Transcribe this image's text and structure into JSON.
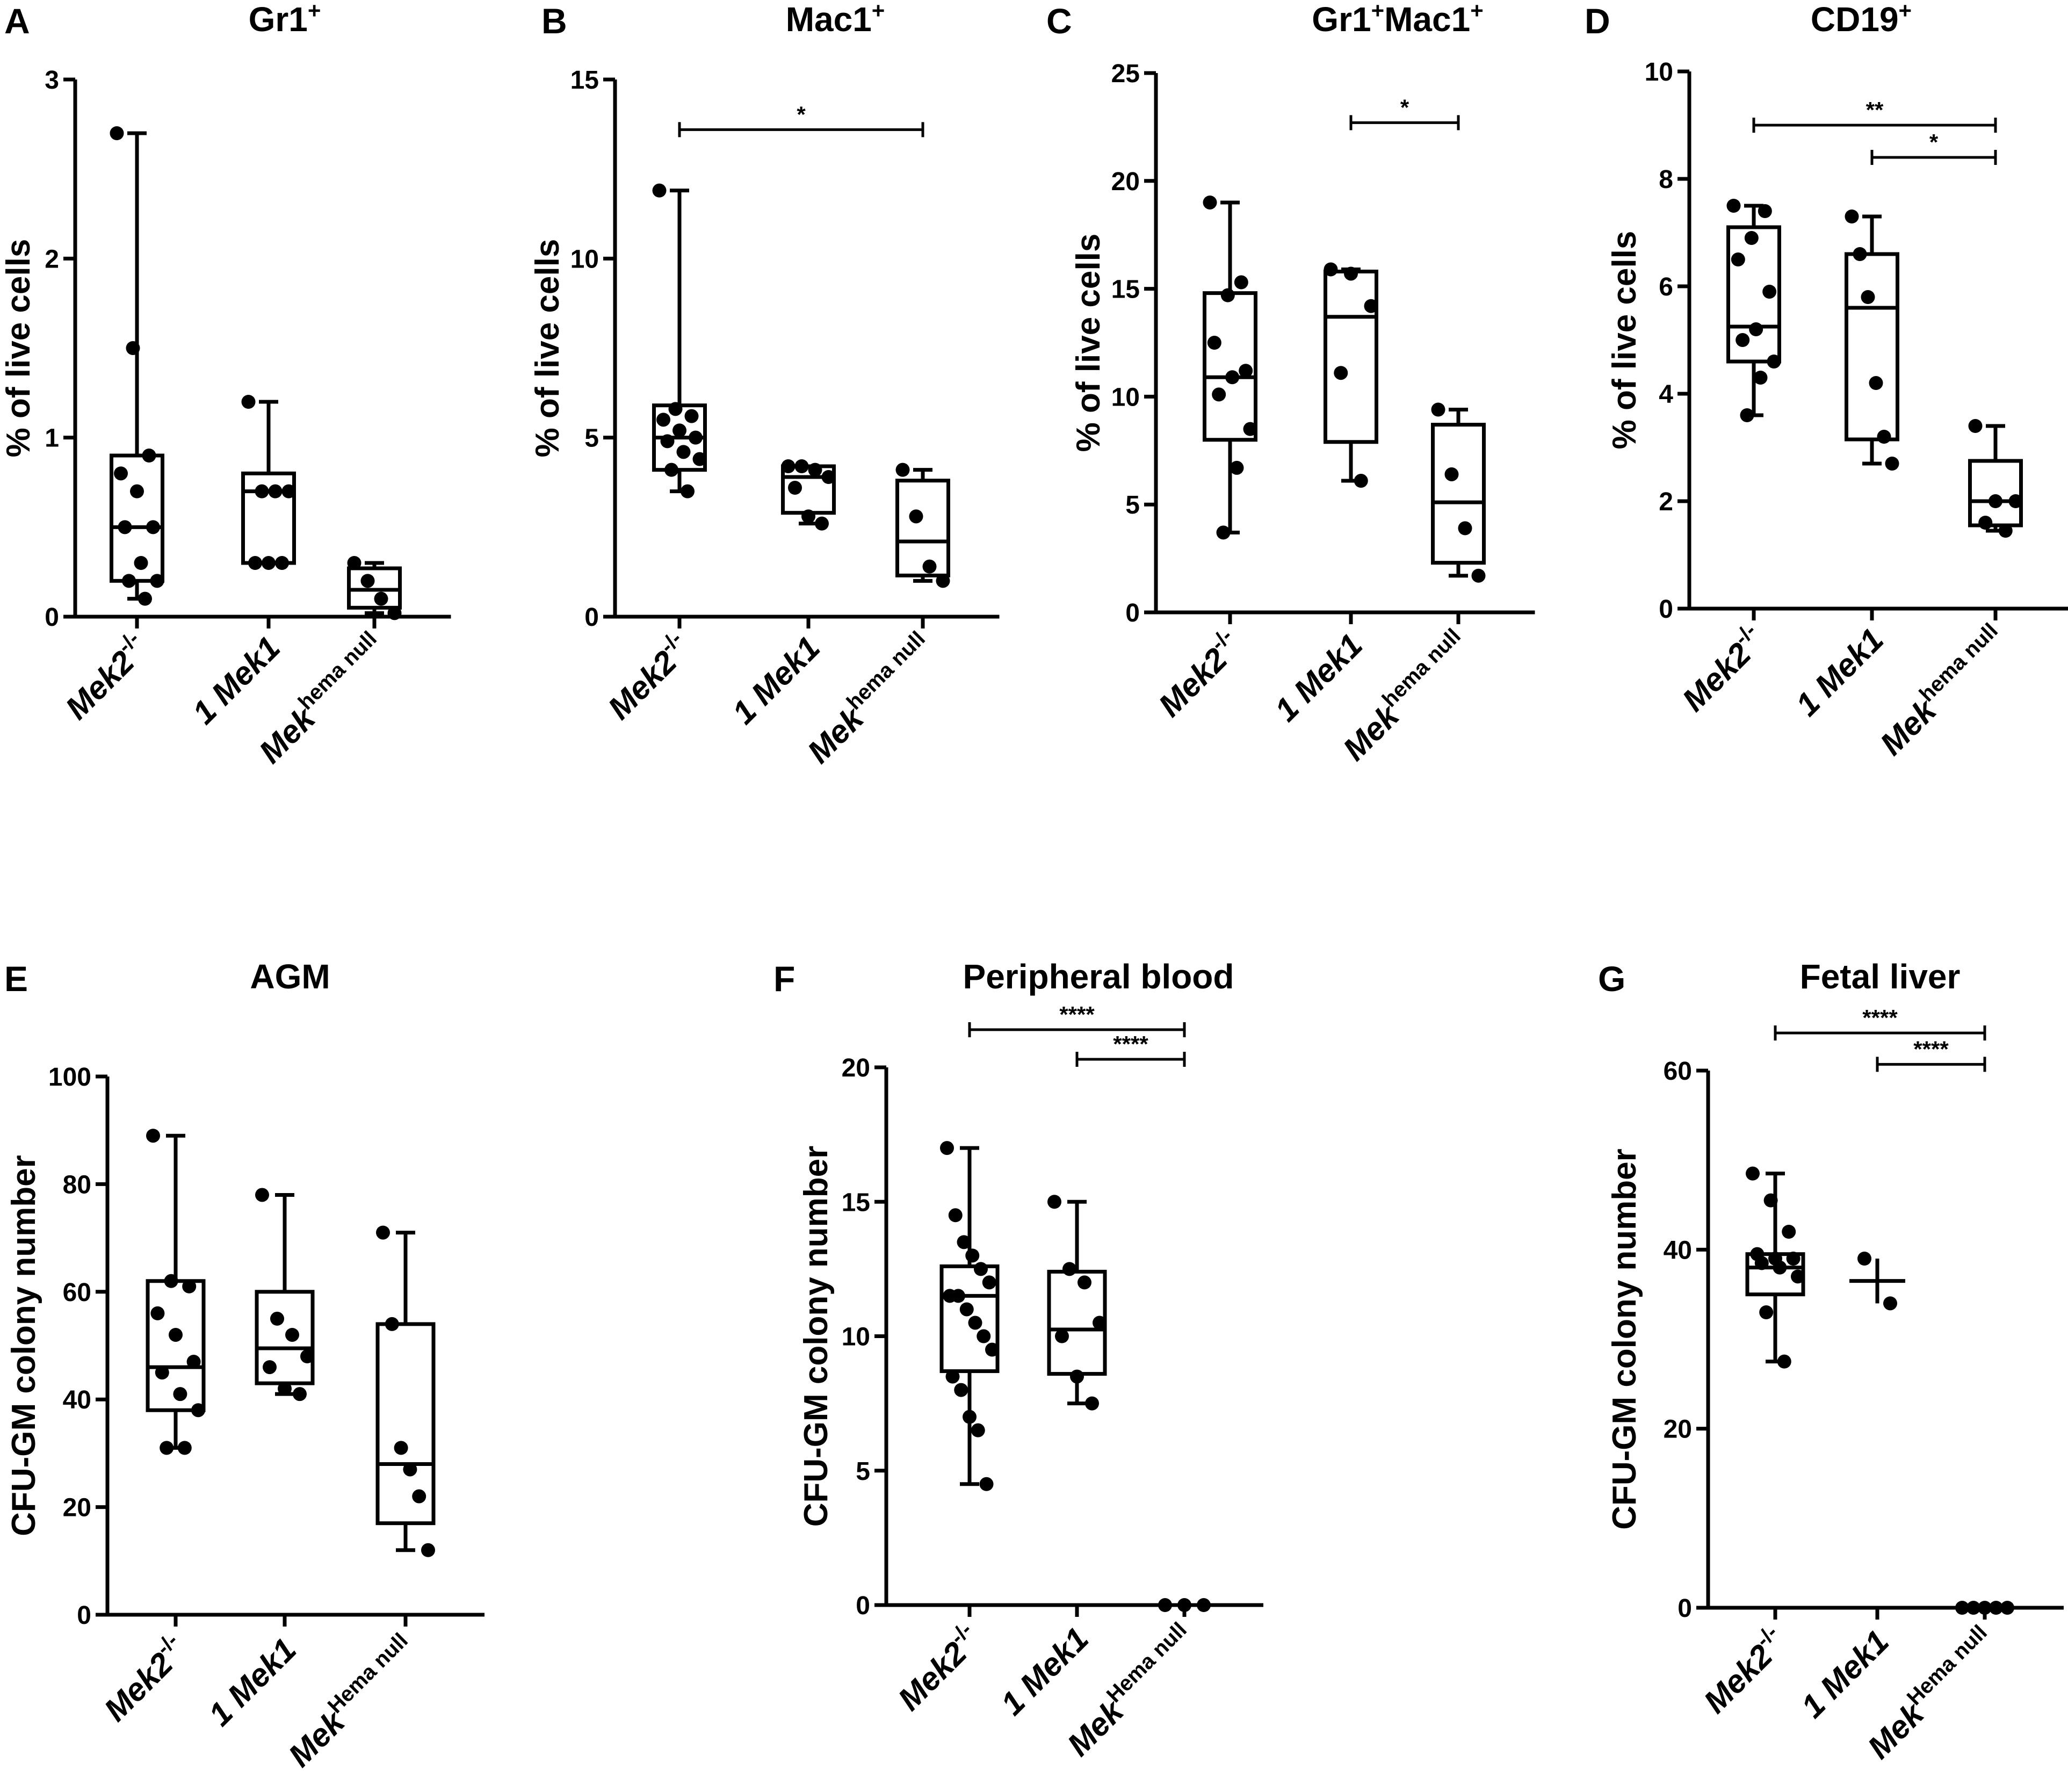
{
  "chart_data": [
    {
      "panel": "A",
      "type": "box",
      "title": "Gr1",
      "title_sup": "+",
      "title_suffix": "",
      "title_sup2": "",
      "ylabel": "% of live cells",
      "ylim": [
        0,
        3
      ],
      "yticks": [
        0,
        1,
        2,
        3
      ],
      "categories": [
        {
          "main": "Mek2",
          "sup": "-/-"
        },
        {
          "main": "1 Mek1",
          "sup": ""
        },
        {
          "main": "Mek",
          "sup": "hema null"
        }
      ],
      "series": [
        {
          "name": "Mek2-/-",
          "box": {
            "min": 0.1,
            "q1": 0.2,
            "median": 0.5,
            "q3": 0.9,
            "max": 2.7
          },
          "points": [
            2.7,
            1.5,
            0.9,
            0.8,
            0.7,
            0.5,
            0.5,
            0.3,
            0.2,
            0.2,
            0.1
          ]
        },
        {
          "name": "1 Mek1",
          "box": {
            "min": 0.3,
            "q1": 0.3,
            "median": 0.7,
            "q3": 0.8,
            "max": 1.2
          },
          "points": [
            1.2,
            0.7,
            0.7,
            0.7,
            0.3,
            0.3,
            0.3
          ]
        },
        {
          "name": "Mekhema null",
          "box": {
            "min": 0.02,
            "q1": 0.05,
            "median": 0.15,
            "q3": 0.27,
            "max": 0.3
          },
          "points": [
            0.3,
            0.2,
            0.1,
            0.02
          ]
        }
      ],
      "significance": []
    },
    {
      "panel": "B",
      "type": "box",
      "title": "Mac1",
      "title_sup": "+",
      "title_suffix": "",
      "title_sup2": "",
      "ylabel": "% of live cells",
      "ylim": [
        0,
        15
      ],
      "yticks": [
        0,
        5,
        10,
        15
      ],
      "categories": [
        {
          "main": "Mek2",
          "sup": "-/-"
        },
        {
          "main": "1 Mek1",
          "sup": ""
        },
        {
          "main": "Mek",
          "sup": "hema null"
        }
      ],
      "series": [
        {
          "name": "Mek2-/-",
          "box": {
            "min": 3.5,
            "q1": 4.1,
            "median": 5.0,
            "q3": 5.9,
            "max": 11.9
          },
          "points": [
            11.9,
            5.8,
            5.6,
            5.5,
            5.2,
            5.0,
            4.9,
            4.6,
            4.4,
            4.1,
            3.5
          ]
        },
        {
          "name": "1 Mek1",
          "box": {
            "min": 2.6,
            "q1": 2.9,
            "median": 3.9,
            "q3": 4.2,
            "max": 4.2
          },
          "points": [
            4.2,
            4.2,
            4.1,
            3.9,
            3.6,
            2.8,
            2.6
          ]
        },
        {
          "name": "Mekhema null",
          "box": {
            "min": 1.0,
            "q1": 1.15,
            "median": 2.1,
            "q3": 3.8,
            "max": 4.1
          },
          "points": [
            4.1,
            2.8,
            1.4,
            1.0
          ]
        }
      ],
      "significance": [
        {
          "from": 0,
          "to": 2,
          "label": "*",
          "y": 13.6
        }
      ]
    },
    {
      "panel": "C",
      "type": "box",
      "title": "Gr1",
      "title_sup": "+",
      "title_suffix": "Mac1",
      "title_sup2": "+",
      "ylabel": "% of live cells",
      "ylim": [
        0,
        25
      ],
      "yticks": [
        0,
        5,
        10,
        15,
        20,
        25
      ],
      "categories": [
        {
          "main": "Mek2",
          "sup": "-/-"
        },
        {
          "main": "1 Mek1",
          "sup": ""
        },
        {
          "main": "Mek",
          "sup": "hema null"
        }
      ],
      "series": [
        {
          "name": "Mek2-/-",
          "box": {
            "min": 3.7,
            "q1": 8.0,
            "median": 10.9,
            "q3": 14.8,
            "max": 19.0
          },
          "points": [
            19.0,
            15.3,
            14.7,
            12.5,
            11.2,
            10.9,
            10.1,
            8.5,
            6.7,
            3.7
          ]
        },
        {
          "name": "1 Mek1",
          "box": {
            "min": 6.1,
            "q1": 7.9,
            "median": 13.7,
            "q3": 15.8,
            "max": 15.9
          },
          "points": [
            15.9,
            15.7,
            14.2,
            11.1,
            6.1
          ]
        },
        {
          "name": "Mekhema null",
          "box": {
            "min": 1.7,
            "q1": 2.3,
            "median": 5.1,
            "q3": 8.7,
            "max": 9.4
          },
          "points": [
            9.4,
            6.4,
            3.9,
            1.7
          ]
        }
      ],
      "significance": [
        {
          "from": 1,
          "to": 2,
          "label": "*",
          "y": 22.7
        }
      ]
    },
    {
      "panel": "D",
      "type": "box",
      "title": "CD19",
      "title_sup": "+",
      "title_suffix": "",
      "title_sup2": "",
      "ylabel": "% of live cells",
      "ylim": [
        0,
        10
      ],
      "yticks": [
        0,
        2,
        4,
        6,
        8,
        10
      ],
      "categories": [
        {
          "main": "Mek2",
          "sup": "-/-"
        },
        {
          "main": "1 Mek1",
          "sup": ""
        },
        {
          "main": "Mek",
          "sup": "hema null"
        }
      ],
      "series": [
        {
          "name": "Mek2-/-",
          "box": {
            "min": 3.6,
            "q1": 4.6,
            "median": 5.25,
            "q3": 7.1,
            "max": 7.5
          },
          "points": [
            7.5,
            7.4,
            6.9,
            6.5,
            5.9,
            5.2,
            5.0,
            4.6,
            4.3,
            3.6
          ]
        },
        {
          "name": "1 Mek1",
          "box": {
            "min": 2.7,
            "q1": 3.15,
            "median": 5.6,
            "q3": 6.6,
            "max": 7.3
          },
          "points": [
            7.3,
            6.6,
            5.8,
            4.2,
            3.2,
            2.7
          ]
        },
        {
          "name": "Mekhema null",
          "box": {
            "min": 1.45,
            "q1": 1.55,
            "median": 2.0,
            "q3": 2.75,
            "max": 3.4
          },
          "points": [
            3.4,
            2.0,
            2.0,
            1.6,
            1.45
          ]
        }
      ],
      "significance": [
        {
          "from": 0,
          "to": 2,
          "label": "**",
          "y": 9.0
        },
        {
          "from": 1,
          "to": 2,
          "label": "*",
          "y": 8.4
        }
      ]
    },
    {
      "panel": "E",
      "type": "box",
      "title": "AGM",
      "title_sup": "",
      "title_suffix": "",
      "title_sup2": "",
      "ylabel": "CFU-GM colony number",
      "ylim": [
        0,
        100
      ],
      "yticks": [
        0,
        20,
        40,
        60,
        80,
        100
      ],
      "categories": [
        {
          "main": "Mek2",
          "sup": "-/-"
        },
        {
          "main": "1 Mek1",
          "sup": ""
        },
        {
          "main": "Mek",
          "sup": "Hema null"
        }
      ],
      "series": [
        {
          "name": "Mek2-/-",
          "box": {
            "min": 31,
            "q1": 38,
            "median": 46,
            "q3": 62,
            "max": 89
          },
          "points": [
            89,
            62,
            61,
            56,
            52,
            47,
            45,
            41,
            38,
            31,
            31
          ]
        },
        {
          "name": "1 Mek1",
          "box": {
            "min": 41,
            "q1": 43,
            "median": 49.5,
            "q3": 60,
            "max": 78
          },
          "points": [
            78,
            55,
            52,
            48,
            46,
            42,
            41
          ]
        },
        {
          "name": "Mekhema null",
          "box": {
            "min": 12,
            "q1": 17,
            "median": 28,
            "q3": 54,
            "max": 71
          },
          "points": [
            71,
            54,
            31,
            27,
            22,
            12
          ]
        }
      ],
      "significance": []
    },
    {
      "panel": "F",
      "type": "box",
      "title": "Peripheral blood",
      "title_sup": "",
      "title_suffix": "",
      "title_sup2": "",
      "ylabel": "CFU-GM colony number",
      "ylim": [
        0,
        20
      ],
      "yticks": [
        0,
        5,
        10,
        15,
        20
      ],
      "categories": [
        {
          "main": "Mek2",
          "sup": "-/-"
        },
        {
          "main": "1 Mek1",
          "sup": ""
        },
        {
          "main": "Mek",
          "sup": "Hema null"
        }
      ],
      "series": [
        {
          "name": "Mek2-/-",
          "box": {
            "min": 4.5,
            "q1": 8.7,
            "median": 11.5,
            "q3": 12.6,
            "max": 17.0
          },
          "points": [
            17.0,
            14.5,
            13.5,
            13.0,
            12.5,
            12.0,
            11.5,
            11.5,
            11.0,
            10.5,
            10.0,
            9.5,
            8.5,
            8.0,
            7.0,
            6.5,
            4.5
          ]
        },
        {
          "name": "1 Mek1",
          "box": {
            "min": 7.5,
            "q1": 8.6,
            "median": 10.25,
            "q3": 12.4,
            "max": 15.0
          },
          "points": [
            15.0,
            12.5,
            12.0,
            10.5,
            10.0,
            8.5,
            7.5
          ]
        },
        {
          "name": "MekHema null",
          "box": {
            "min": 0,
            "q1": 0,
            "median": 0,
            "q3": 0,
            "max": 0
          },
          "points": [
            0,
            0,
            0
          ]
        }
      ],
      "significance": [
        {
          "from": 0,
          "to": 2,
          "label": "****",
          "y": 21.4
        },
        {
          "from": 1,
          "to": 2,
          "label": "****",
          "y": 20.3
        }
      ]
    },
    {
      "panel": "G",
      "type": "box",
      "title": "Fetal liver",
      "title_sup": "",
      "title_suffix": "",
      "title_sup2": "",
      "ylabel": "CFU-GM colony number",
      "ylim": [
        0,
        60
      ],
      "yticks": [
        0,
        20,
        40,
        60
      ],
      "categories": [
        {
          "main": "Mek2",
          "sup": "-/-"
        },
        {
          "main": "1 Mek1",
          "sup": ""
        },
        {
          "main": "Mek",
          "sup": "Hema null"
        }
      ],
      "series": [
        {
          "name": "Mek2-/-",
          "box": {
            "min": 27.5,
            "q1": 35.0,
            "median": 38.0,
            "q3": 39.5,
            "max": 48.5
          },
          "points": [
            48.5,
            45.5,
            42.0,
            39.5,
            39.0,
            39.0,
            38.5,
            38.0,
            37.0,
            33.0,
            27.5
          ]
        },
        {
          "name": "1 Mek1",
          "box": {
            "min": 34.0,
            "q1": 34.0,
            "median": 36.5,
            "q3": 39.0,
            "max": 39.0
          },
          "points": [
            39.0,
            34.0
          ],
          "meanline_only": true
        },
        {
          "name": "MekHema null",
          "box": {
            "min": 0,
            "q1": 0,
            "median": 0,
            "q3": 0,
            "max": 0
          },
          "points": [
            0,
            0,
            0,
            0,
            0
          ]
        }
      ],
      "significance": [
        {
          "from": 0,
          "to": 2,
          "label": "****",
          "y": 64.2
        },
        {
          "from": 1,
          "to": 2,
          "label": "****",
          "y": 60.7
        }
      ]
    }
  ]
}
